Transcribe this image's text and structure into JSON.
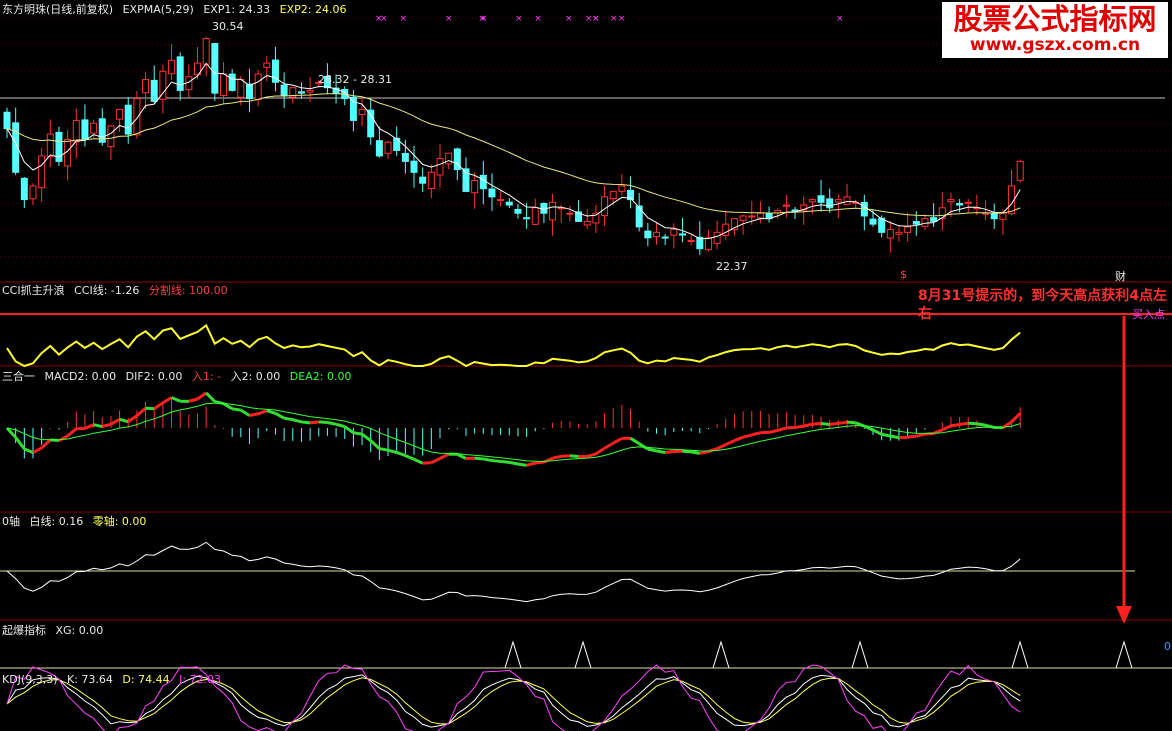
{
  "headers": {
    "main": {
      "name": "东方明珠(日线,前复权)",
      "indicator": "EXPMA(5,29)",
      "exp1": "EXP1: 24.33",
      "exp2": "EXP2: 24.06"
    },
    "cci": {
      "name": "CCI抓主升浪",
      "line": "CCI线: -1.26",
      "divider": "分割线: 100.00"
    },
    "macd": {
      "name": "三合一",
      "macd2": "MACD2: 0.00",
      "dif2": "DIF2: 0.00",
      "in1": "入1: -",
      "in2": "入2: 0.00",
      "dea2": "DEA2: 0.00"
    },
    "zero": {
      "name": "0轴",
      "white": "白线: 0.16",
      "zero": "零轴: 0.00"
    },
    "xg": {
      "name": "起爆指标",
      "xg": "XG: 0.00"
    },
    "kdj": {
      "name": "KDJ(9,3,3)",
      "k": "K: 73.64",
      "d": "D: 74.44",
      "j": "J: 72.03"
    }
  },
  "annotations": {
    "high": "30.54",
    "low": "22.37",
    "range": "28.32 - 28.31",
    "cai": "财",
    "dollar": "$",
    "buy": "买入点",
    "note": "8月31号提示的，到今天高点获利4点左右",
    "right_zero": "0"
  },
  "logo": {
    "line1": "股票公式指标网",
    "line2": "www.gszx.com.cn"
  },
  "colors": {
    "up": "#ff3030",
    "down": "#55ffff",
    "exp1": "#ffffff",
    "exp2": "#e8e880",
    "cci": "#ffff30",
    "divider": "#ff2020",
    "dif_up": "#ff2020",
    "dif_down": "#33dd33",
    "dea": "#33ff33",
    "white": "#ffffff",
    "kdj_k": "#ffffff",
    "kdj_d": "#ffff55",
    "kdj_j": "#ff40ff",
    "grid": "#8b0000",
    "arrow": "#ff2020"
  },
  "chart_data": {
    "type": "candlestick",
    "closes": [
      27.2,
      25.6,
      24.6,
      25.1,
      26.2,
      27.0,
      26.0,
      26.8,
      27.5,
      26.8,
      27.4,
      26.7,
      27.3,
      27.9,
      27.0,
      28.3,
      29.0,
      28.2,
      29.3,
      29.7,
      28.6,
      29.1,
      29.6,
      30.5,
      28.5,
      29.2,
      28.6,
      29.0,
      28.3,
      29.2,
      29.6,
      28.9,
      28.4,
      28.7,
      28.5,
      28.6,
      28.9,
      28.7,
      28.5,
      28.3,
      27.5,
      27.9,
      26.9,
      26.2,
      26.7,
      26.4,
      26.0,
      25.6,
      25.2,
      25.6,
      26.1,
      26.3,
      25.7,
      24.9,
      25.3,
      25.0,
      24.7,
      24.6,
      24.4,
      24.1,
      23.9,
      24.3,
      24.1,
      24.5,
      24.3,
      24.1,
      23.8,
      23.8,
      24.1,
      24.7,
      24.9,
      25.1,
      24.6,
      23.6,
      23.2,
      23.4,
      23.2,
      23.5,
      23.3,
      23.1,
      22.8,
      23.2,
      23.4,
      23.7,
      23.9,
      24.0,
      24.0,
      24.1,
      23.9,
      24.2,
      24.4,
      24.2,
      24.4,
      24.6,
      24.5,
      24.3,
      24.6,
      24.7,
      24.5,
      24.0,
      23.7,
      23.4,
      23.5,
      23.4,
      23.6,
      23.7,
      23.9,
      23.8,
      24.3,
      24.6,
      24.4,
      24.5,
      24.3,
      24.1,
      23.9,
      24.1,
      25.1,
      26.0
    ],
    "exp1_label": "EXP1: 24.33",
    "exp2_label": "EXP2: 24.06",
    "price_high": 30.54,
    "price_low": 22.37,
    "signal_days": [
      100,
      114,
      140,
      159,
      191,
      224
    ],
    "cci_line_value": -1.26,
    "divider_value": 100.0,
    "kdj": {
      "k": 73.64,
      "d": 74.44,
      "j": 72.03
    }
  }
}
